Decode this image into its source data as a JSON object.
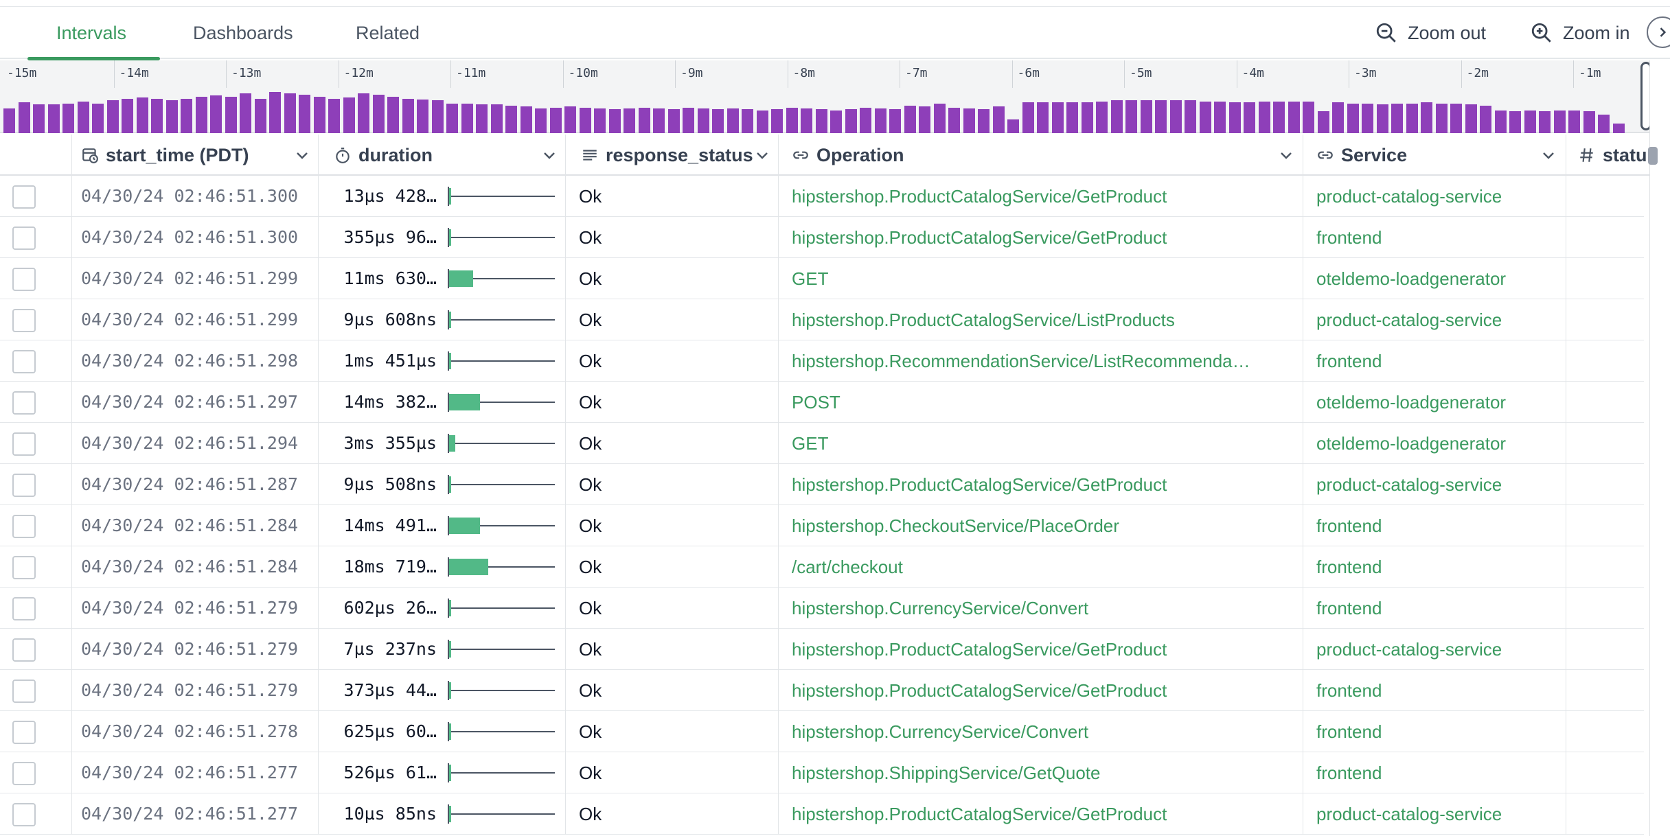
{
  "tabs": [
    {
      "label": "Intervals",
      "active": true
    },
    {
      "label": "Dashboards",
      "active": false
    },
    {
      "label": "Related",
      "active": false
    }
  ],
  "toolbar": {
    "zoom_out_label": "Zoom out",
    "zoom_in_label": "Zoom in"
  },
  "colors": {
    "accent": "#3a9a5f",
    "histogram": "#8e3fb9",
    "duration_fill": "#52b987"
  },
  "timeline": {
    "labels": [
      "-15m",
      "-14m",
      "-13m",
      "-12m",
      "-11m",
      "-10m",
      "-9m",
      "-8m",
      "-7m",
      "-6m",
      "-5m",
      "-4m",
      "-3m",
      "-2m",
      "-1m"
    ],
    "bar_levels": [
      0.5,
      0.62,
      0.58,
      0.58,
      0.6,
      0.64,
      0.6,
      0.66,
      0.7,
      0.72,
      0.7,
      0.66,
      0.7,
      0.74,
      0.76,
      0.74,
      0.8,
      0.7,
      0.84,
      0.8,
      0.78,
      0.74,
      0.7,
      0.72,
      0.8,
      0.78,
      0.74,
      0.7,
      0.68,
      0.66,
      0.6,
      0.6,
      0.58,
      0.58,
      0.56,
      0.54,
      0.5,
      0.52,
      0.54,
      0.52,
      0.5,
      0.48,
      0.5,
      0.52,
      0.5,
      0.48,
      0.52,
      0.5,
      0.48,
      0.5,
      0.48,
      0.46,
      0.48,
      0.52,
      0.5,
      0.48,
      0.46,
      0.48,
      0.52,
      0.5,
      0.48,
      0.56,
      0.54,
      0.6,
      0.52,
      0.5,
      0.48,
      0.54,
      0.28,
      0.62,
      0.62,
      0.62,
      0.62,
      0.62,
      0.64,
      0.66,
      0.66,
      0.66,
      0.66,
      0.66,
      0.66,
      0.64,
      0.64,
      0.62,
      0.62,
      0.64,
      0.64,
      0.64,
      0.64,
      0.44,
      0.62,
      0.6,
      0.6,
      0.58,
      0.6,
      0.6,
      0.62,
      0.6,
      0.6,
      0.58,
      0.56,
      0.46,
      0.44,
      0.46,
      0.44,
      0.46,
      0.46,
      0.44,
      0.38,
      0.2
    ]
  },
  "columns": [
    {
      "key": "check",
      "label": ""
    },
    {
      "key": "start_time",
      "label": "start_time (PDT)",
      "icon": "calendar-clock-icon"
    },
    {
      "key": "duration",
      "label": "duration",
      "icon": "stopwatch-icon"
    },
    {
      "key": "response_status",
      "label": "response_status",
      "icon": "text-lines-icon"
    },
    {
      "key": "operation",
      "label": "Operation",
      "icon": "link-icon"
    },
    {
      "key": "service",
      "label": "Service",
      "icon": "link-icon"
    },
    {
      "key": "status",
      "label": "statu",
      "icon": "hash-icon"
    }
  ],
  "rows": [
    {
      "start_time": "04/30/24 02:46:51.300",
      "duration": "13µs 428…",
      "dur_fraction": 0.01,
      "status": "Ok",
      "operation": "hipstershop.ProductCatalogService/GetProduct",
      "service": "product-catalog-service"
    },
    {
      "start_time": "04/30/24 02:46:51.300",
      "duration": "355µs 96…",
      "dur_fraction": 0.01,
      "status": "Ok",
      "operation": "hipstershop.ProductCatalogService/GetProduct",
      "service": "frontend"
    },
    {
      "start_time": "04/30/24 02:46:51.299",
      "duration": "11ms 630…",
      "dur_fraction": 0.23,
      "status": "Ok",
      "operation": "GET",
      "service": "oteldemo-loadgenerator"
    },
    {
      "start_time": "04/30/24 02:46:51.299",
      "duration": "9µs 608ns",
      "dur_fraction": 0.01,
      "status": "Ok",
      "operation": "hipstershop.ProductCatalogService/ListProducts",
      "service": "product-catalog-service"
    },
    {
      "start_time": "04/30/24 02:46:51.298",
      "duration": "1ms 451µs",
      "dur_fraction": 0.02,
      "status": "Ok",
      "operation": "hipstershop.RecommendationService/ListRecommenda…",
      "service": "frontend"
    },
    {
      "start_time": "04/30/24 02:46:51.297",
      "duration": "14ms 382…",
      "dur_fraction": 0.29,
      "status": "Ok",
      "operation": "POST",
      "service": "oteldemo-loadgenerator"
    },
    {
      "start_time": "04/30/24 02:46:51.294",
      "duration": "3ms 355µs",
      "dur_fraction": 0.06,
      "status": "Ok",
      "operation": "GET",
      "service": "oteldemo-loadgenerator"
    },
    {
      "start_time": "04/30/24 02:46:51.287",
      "duration": "9µs 508ns",
      "dur_fraction": 0.01,
      "status": "Ok",
      "operation": "hipstershop.ProductCatalogService/GetProduct",
      "service": "product-catalog-service"
    },
    {
      "start_time": "04/30/24 02:46:51.284",
      "duration": "14ms 491…",
      "dur_fraction": 0.29,
      "status": "Ok",
      "operation": "hipstershop.CheckoutService/PlaceOrder",
      "service": "frontend"
    },
    {
      "start_time": "04/30/24 02:46:51.284",
      "duration": "18ms 719…",
      "dur_fraction": 0.37,
      "status": "Ok",
      "operation": "/cart/checkout",
      "service": "frontend"
    },
    {
      "start_time": "04/30/24 02:46:51.279",
      "duration": "602µs 26…",
      "dur_fraction": 0.01,
      "status": "Ok",
      "operation": "hipstershop.CurrencyService/Convert",
      "service": "frontend"
    },
    {
      "start_time": "04/30/24 02:46:51.279",
      "duration": "7µs 237ns",
      "dur_fraction": 0.01,
      "status": "Ok",
      "operation": "hipstershop.ProductCatalogService/GetProduct",
      "service": "product-catalog-service"
    },
    {
      "start_time": "04/30/24 02:46:51.279",
      "duration": "373µs 44…",
      "dur_fraction": 0.01,
      "status": "Ok",
      "operation": "hipstershop.ProductCatalogService/GetProduct",
      "service": "frontend"
    },
    {
      "start_time": "04/30/24 02:46:51.278",
      "duration": "625µs 60…",
      "dur_fraction": 0.01,
      "status": "Ok",
      "operation": "hipstershop.CurrencyService/Convert",
      "service": "frontend"
    },
    {
      "start_time": "04/30/24 02:46:51.277",
      "duration": "526µs 61…",
      "dur_fraction": 0.01,
      "status": "Ok",
      "operation": "hipstershop.ShippingService/GetQuote",
      "service": "frontend"
    },
    {
      "start_time": "04/30/24 02:46:51.277",
      "duration": "10µs 85ns",
      "dur_fraction": 0.01,
      "status": "Ok",
      "operation": "hipstershop.ProductCatalogService/GetProduct",
      "service": "product-catalog-service"
    }
  ]
}
